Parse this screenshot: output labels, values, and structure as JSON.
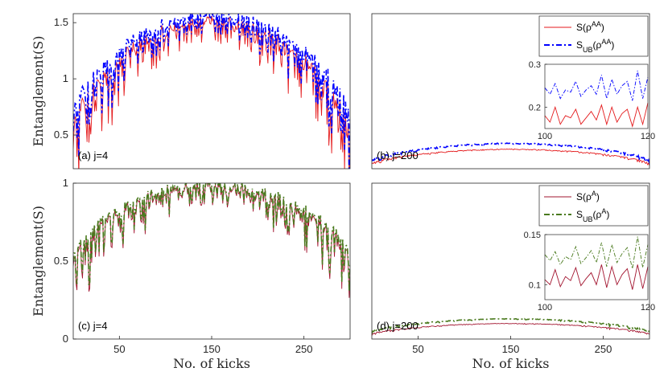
{
  "chart_data": [
    {
      "type": "line",
      "panel_label": "(a) j=4",
      "ylabel": "Entanglement(S)",
      "xlabel": "",
      "xlim": [
        0,
        300
      ],
      "ylim": [
        0.2,
        1.58
      ],
      "xticks": [],
      "yticks": [
        "0.5",
        "1",
        "1.5"
      ],
      "ytick_values": [
        0.5,
        1,
        1.5
      ],
      "legend": [],
      "series": [
        {
          "name": "S(ρ^AA)",
          "color": "#e41a1c",
          "style": "solid",
          "base_floor": 0.55,
          "base_peak": 1.53,
          "depth": 0.75,
          "seed": 11
        },
        {
          "name": "S_UB(ρ^AA)",
          "color": "#0000ff",
          "style": "dashdot",
          "base_floor": 0.68,
          "base_peak": 1.58,
          "depth": 0.65,
          "seed": 11
        }
      ]
    },
    {
      "type": "line",
      "panel_label": "(b) j=200",
      "ylabel": "",
      "xlabel": "",
      "xlim": [
        0,
        300
      ],
      "ylim": [
        0,
        1.58
      ],
      "xticks": [],
      "yticks": [],
      "legend": [
        {
          "label": "S(ρ^AA)",
          "main": "S(",
          "sub": "",
          "rho_sup": "AA",
          "color": "#e41a1c",
          "style": "solid"
        },
        {
          "label": "S_UB(ρ^AA)",
          "main": "S",
          "sub": "UB",
          "rho_sup": "AA",
          "color": "#0000ff",
          "style": "dashdot"
        }
      ],
      "inset": {
        "xlim": [
          100,
          120
        ],
        "ylim": [
          0.15,
          0.3
        ],
        "xticks": [
          "100",
          "120"
        ],
        "xtick_values": [
          100,
          120
        ],
        "yticks": [
          "0.2",
          "0.3"
        ],
        "ytick_values": [
          0.2,
          0.3
        ],
        "lower_series": {
          "color": "#e41a1c",
          "values": [
            0.18,
            0.165,
            0.2,
            0.16,
            0.18,
            0.175,
            0.195,
            0.16,
            0.175,
            0.19,
            0.17,
            0.205,
            0.16,
            0.2,
            0.165,
            0.185,
            0.195,
            0.155,
            0.2,
            0.16,
            0.21
          ]
        },
        "upper_series": {
          "color": "#0000ff",
          "values": [
            0.245,
            0.23,
            0.255,
            0.22,
            0.24,
            0.235,
            0.26,
            0.225,
            0.24,
            0.25,
            0.23,
            0.275,
            0.22,
            0.265,
            0.23,
            0.25,
            0.26,
            0.215,
            0.285,
            0.22,
            0.27
          ]
        }
      },
      "series": [
        {
          "name": "S(ρ^AA)",
          "color": "#e41a1c",
          "style": "solid",
          "base_floor": 0.05,
          "base_peak": 0.2,
          "depth": 0.03,
          "seed": 21
        },
        {
          "name": "S_UB(ρ^AA)",
          "color": "#0000ff",
          "style": "dashdot",
          "base_floor": 0.08,
          "base_peak": 0.26,
          "depth": 0.04,
          "seed": 21
        }
      ]
    },
    {
      "type": "line",
      "panel_label": "(c) j=4",
      "ylabel": "Entanglement(S)",
      "xlabel": "No. of kicks",
      "xlim": [
        0,
        300
      ],
      "ylim": [
        0,
        1
      ],
      "xticks": [
        "50",
        "150",
        "250"
      ],
      "xtick_values": [
        50,
        150,
        250
      ],
      "yticks": [
        "0",
        "0.5",
        "1"
      ],
      "ytick_values": [
        0,
        0.5,
        1
      ],
      "legend": [],
      "series": [
        {
          "name": "S(ρ^A)",
          "color": "#a2142f",
          "style": "solid",
          "base_floor": 0.5,
          "base_peak": 0.99,
          "depth": 0.45,
          "seed": 31
        },
        {
          "name": "S_UB(ρ^A)",
          "color": "#4a7a1e",
          "style": "dashdot",
          "base_floor": 0.53,
          "base_peak": 1.0,
          "depth": 0.43,
          "seed": 31
        }
      ]
    },
    {
      "type": "line",
      "panel_label": "(d) j=200",
      "ylabel": "",
      "xlabel": "No. of kicks",
      "xlim": [
        0,
        300
      ],
      "ylim": [
        0,
        1
      ],
      "xticks": [
        "50",
        "150",
        "250"
      ],
      "xtick_values": [
        50,
        150,
        250
      ],
      "yticks": [],
      "legend": [
        {
          "label": "S(ρ^A)",
          "main": "S(",
          "sub": "",
          "rho_sup": "A",
          "color": "#a2142f",
          "style": "solid"
        },
        {
          "label": "S_UB(ρ^A)",
          "main": "S",
          "sub": "UB",
          "rho_sup": "A",
          "color": "#4a7a1e",
          "style": "dashdot"
        }
      ],
      "inset": {
        "xlim": [
          100,
          120
        ],
        "ylim": [
          0.085,
          0.15
        ],
        "xticks": [
          "100",
          "120"
        ],
        "xtick_values": [
          100,
          120
        ],
        "yticks": [
          "0.1",
          "0.15"
        ],
        "ytick_values": [
          0.1,
          0.15
        ],
        "lower_series": {
          "color": "#a2142f",
          "values": [
            0.105,
            0.1,
            0.115,
            0.098,
            0.108,
            0.104,
            0.117,
            0.099,
            0.106,
            0.112,
            0.1,
            0.12,
            0.097,
            0.118,
            0.1,
            0.11,
            0.116,
            0.095,
            0.12,
            0.096,
            0.118
          ]
        },
        "upper_series": {
          "color": "#4a7a1e",
          "values": [
            0.13,
            0.124,
            0.133,
            0.12,
            0.128,
            0.125,
            0.138,
            0.121,
            0.127,
            0.134,
            0.122,
            0.142,
            0.118,
            0.14,
            0.122,
            0.131,
            0.137,
            0.116,
            0.148,
            0.117,
            0.14
          ]
        }
      },
      "series": [
        {
          "name": "S(ρ^A)",
          "color": "#a2142f",
          "style": "solid",
          "base_floor": 0.03,
          "base_peak": 0.1,
          "depth": 0.015,
          "seed": 41
        },
        {
          "name": "S_UB(ρ^A)",
          "color": "#4a7a1e",
          "style": "dashdot",
          "base_floor": 0.045,
          "base_peak": 0.13,
          "depth": 0.02,
          "seed": 41
        }
      ]
    }
  ]
}
